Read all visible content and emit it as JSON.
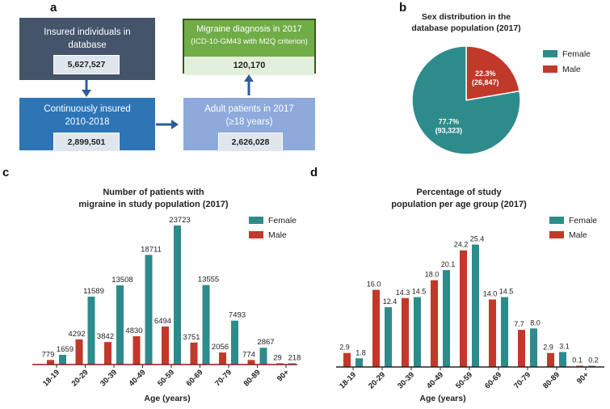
{
  "panels": {
    "a": "a",
    "b": "b",
    "c": "c",
    "d": "d"
  },
  "flow": {
    "insured": {
      "title": "Insured individuals in database",
      "value": "5,627,527",
      "color": "#44546a"
    },
    "continuous": {
      "title": "Continuously insured 2010-2018",
      "value": "2,899,501",
      "color": "#2e75b6"
    },
    "adult": {
      "title_line1": "Adult patients in 2017",
      "title_line2": "(≥18 years)",
      "value": "2,626,028",
      "color": "#8eaadb"
    },
    "migraine": {
      "title_line1": "Migraine diagnosis in 2017",
      "title_line2": "(ICD-10-GM43 with M2Q criterion)",
      "value": "120,170",
      "color": "#70ad47"
    },
    "arrow_color": "#2e5c9a"
  },
  "colors": {
    "female": "#2e8b8b",
    "male": "#c0392b"
  },
  "chart_data": [
    {
      "type": "pie",
      "title": "Sex distribution in the database population (2017)",
      "labels": [
        "Female",
        "Male"
      ],
      "values": [
        77.7,
        22.3
      ],
      "counts": [
        "(93,323)",
        "(26,847)"
      ],
      "value_labels": [
        "77.7%",
        "22.3%"
      ],
      "legend": "right"
    },
    {
      "type": "bar",
      "title": "Number of patients with migraine in study population (2017)",
      "title_line1": "Number of patients with",
      "title_line2": "migraine in study population (2017)",
      "categories": [
        "18-19",
        "20-29",
        "30-39",
        "40-49",
        "50-59",
        "60-69",
        "70-79",
        "80-89",
        "90+"
      ],
      "series": [
        {
          "name": "Male",
          "values": [
            779,
            4292,
            3842,
            4830,
            6494,
            3751,
            2056,
            774,
            29
          ]
        },
        {
          "name": "Female",
          "values": [
            1659,
            11589,
            13508,
            18711,
            23723,
            13555,
            7493,
            2867,
            218
          ]
        }
      ],
      "xlabel": "Age (years)",
      "ylim": [
        0,
        24000
      ],
      "legend": "top-right"
    },
    {
      "type": "bar",
      "title": "Percentage of study population per age group (2017)",
      "title_line1": "Percentage of study",
      "title_line2": "population per age group (2017)",
      "categories": [
        "18-19",
        "20-29",
        "30-39",
        "40-49",
        "50-59",
        "60-69",
        "70-79",
        "80-89",
        "90+"
      ],
      "series": [
        {
          "name": "Male",
          "values": [
            2.9,
            16.0,
            14.3,
            18.0,
            24.2,
            14.0,
            7.7,
            2.9,
            0.1
          ]
        },
        {
          "name": "Female",
          "values": [
            1.8,
            12.4,
            14.5,
            20.1,
            25.4,
            14.5,
            8.0,
            3.1,
            0.2
          ]
        }
      ],
      "value_labels": {
        "Male": [
          "2.9",
          "16.0",
          "14.3",
          "18.0",
          "24.2",
          "14.0",
          "7.7",
          "2.9",
          "0.1"
        ],
        "Female": [
          "1.8",
          "12.4",
          "14.5",
          "20.1",
          "25.4",
          "14.5",
          "8.0",
          "3.1",
          "0.2"
        ]
      },
      "xlabel": "Age (years)",
      "ylim": [
        0,
        26
      ],
      "legend": "top-right"
    }
  ]
}
